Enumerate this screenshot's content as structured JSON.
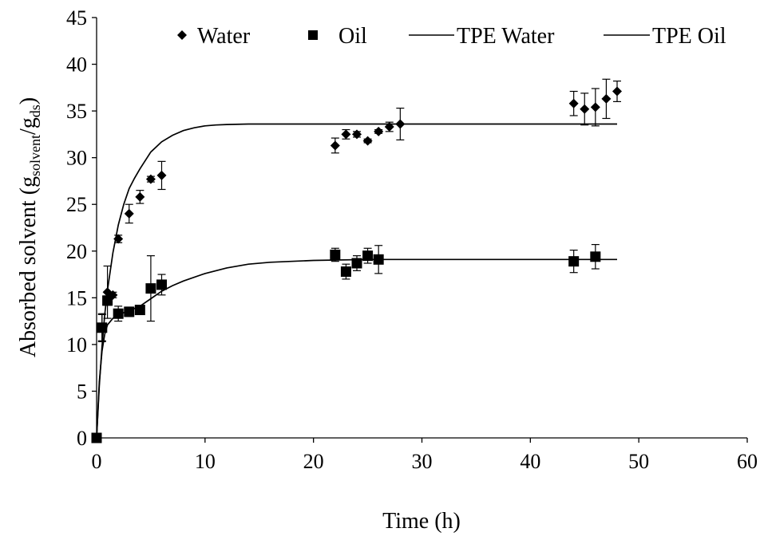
{
  "chart_data": {
    "type": "scatter",
    "title": "",
    "xlabel": "Time (h)",
    "ylabel": {
      "main": "Absorbed solvent (g",
      "sub1": "solvent",
      "mid": "/g",
      "sub2": "ds",
      "end": ")"
    },
    "xlim": [
      0,
      60
    ],
    "ylim": [
      0,
      45
    ],
    "x_ticks": [
      0,
      10,
      20,
      30,
      40,
      50,
      60
    ],
    "y_ticks": [
      0,
      5,
      10,
      15,
      20,
      25,
      30,
      35,
      40,
      45
    ],
    "grid": false,
    "legend_position": "top",
    "series": [
      {
        "name": "Water",
        "kind": "points",
        "marker": "diamond",
        "color": "#000000",
        "points": [
          {
            "x": 0,
            "y": 0,
            "err": 0
          },
          {
            "x": 0.5,
            "y": 11.8,
            "err": 1.5
          },
          {
            "x": 1,
            "y": 15.6,
            "err": 2.8
          },
          {
            "x": 1.5,
            "y": 15.3,
            "err": 0.3
          },
          {
            "x": 2,
            "y": 21.3,
            "err": 0.4
          },
          {
            "x": 3,
            "y": 24.0,
            "err": 1.0
          },
          {
            "x": 4,
            "y": 25.8,
            "err": 0.7
          },
          {
            "x": 5,
            "y": 27.7,
            "err": 0.3
          },
          {
            "x": 6,
            "y": 28.1,
            "err": 1.5
          },
          {
            "x": 22,
            "y": 31.3,
            "err": 0.8
          },
          {
            "x": 23,
            "y": 32.5,
            "err": 0.5
          },
          {
            "x": 24,
            "y": 32.5,
            "err": 0.3
          },
          {
            "x": 25,
            "y": 31.8,
            "err": 0.2
          },
          {
            "x": 26,
            "y": 32.8,
            "err": 0.2
          },
          {
            "x": 27,
            "y": 33.3,
            "err": 0.5
          },
          {
            "x": 28,
            "y": 33.6,
            "err": 1.7
          },
          {
            "x": 44,
            "y": 35.8,
            "err": 1.3
          },
          {
            "x": 45,
            "y": 35.2,
            "err": 1.7
          },
          {
            "x": 46,
            "y": 35.4,
            "err": 2.0
          },
          {
            "x": 47,
            "y": 36.3,
            "err": 2.1
          },
          {
            "x": 48,
            "y": 37.1,
            "err": 1.1
          }
        ]
      },
      {
        "name": "Oil",
        "kind": "points",
        "marker": "square",
        "color": "#000000",
        "points": [
          {
            "x": 0,
            "y": 0,
            "err": 0
          },
          {
            "x": 0.5,
            "y": 11.8,
            "err": 1.4
          },
          {
            "x": 1,
            "y": 14.7,
            "err": 0.5
          },
          {
            "x": 2,
            "y": 13.3,
            "err": 0.8
          },
          {
            "x": 3,
            "y": 13.5,
            "err": 0.5
          },
          {
            "x": 4,
            "y": 13.7,
            "err": 0.3
          },
          {
            "x": 5,
            "y": 16.0,
            "err": 3.5
          },
          {
            "x": 6,
            "y": 16.4,
            "err": 1.1
          },
          {
            "x": 22,
            "y": 19.6,
            "err": 0.7
          },
          {
            "x": 23,
            "y": 17.8,
            "err": 0.8
          },
          {
            "x": 24,
            "y": 18.7,
            "err": 0.8
          },
          {
            "x": 25,
            "y": 19.5,
            "err": 0.8
          },
          {
            "x": 26,
            "y": 19.1,
            "err": 1.5
          },
          {
            "x": 44,
            "y": 18.9,
            "err": 1.2
          },
          {
            "x": 46,
            "y": 19.4,
            "err": 1.3
          }
        ]
      },
      {
        "name": "TPE Water",
        "kind": "line",
        "color": "#000000",
        "x": [
          0,
          0.25,
          0.5,
          0.75,
          1,
          1.5,
          2,
          2.5,
          3,
          3.5,
          4,
          5,
          6,
          7,
          8,
          9,
          10,
          11,
          12,
          14,
          16,
          20,
          25,
          30,
          35,
          40,
          45,
          48
        ],
        "y": [
          0,
          5.6,
          9.8,
          13.2,
          15.8,
          19.8,
          22.8,
          25.0,
          26.7,
          27.8,
          28.8,
          30.6,
          31.7,
          32.4,
          32.9,
          33.2,
          33.4,
          33.5,
          33.55,
          33.6,
          33.6,
          33.6,
          33.6,
          33.6,
          33.6,
          33.6,
          33.6,
          33.6
        ]
      },
      {
        "name": "TPE Oil",
        "kind": "line",
        "color": "#000000",
        "x": [
          0,
          0.25,
          0.5,
          0.75,
          1,
          1.5,
          2,
          3,
          4,
          5,
          6,
          7,
          8,
          10,
          12,
          14,
          16,
          20,
          25,
          30,
          35,
          40,
          45,
          48
        ],
        "y": [
          0,
          6.0,
          9.3,
          11.1,
          12.1,
          12.8,
          13.2,
          13.6,
          14.1,
          14.9,
          15.7,
          16.3,
          16.8,
          17.6,
          18.2,
          18.6,
          18.8,
          19.0,
          19.1,
          19.1,
          19.1,
          19.1,
          19.1,
          19.1
        ]
      }
    ]
  }
}
